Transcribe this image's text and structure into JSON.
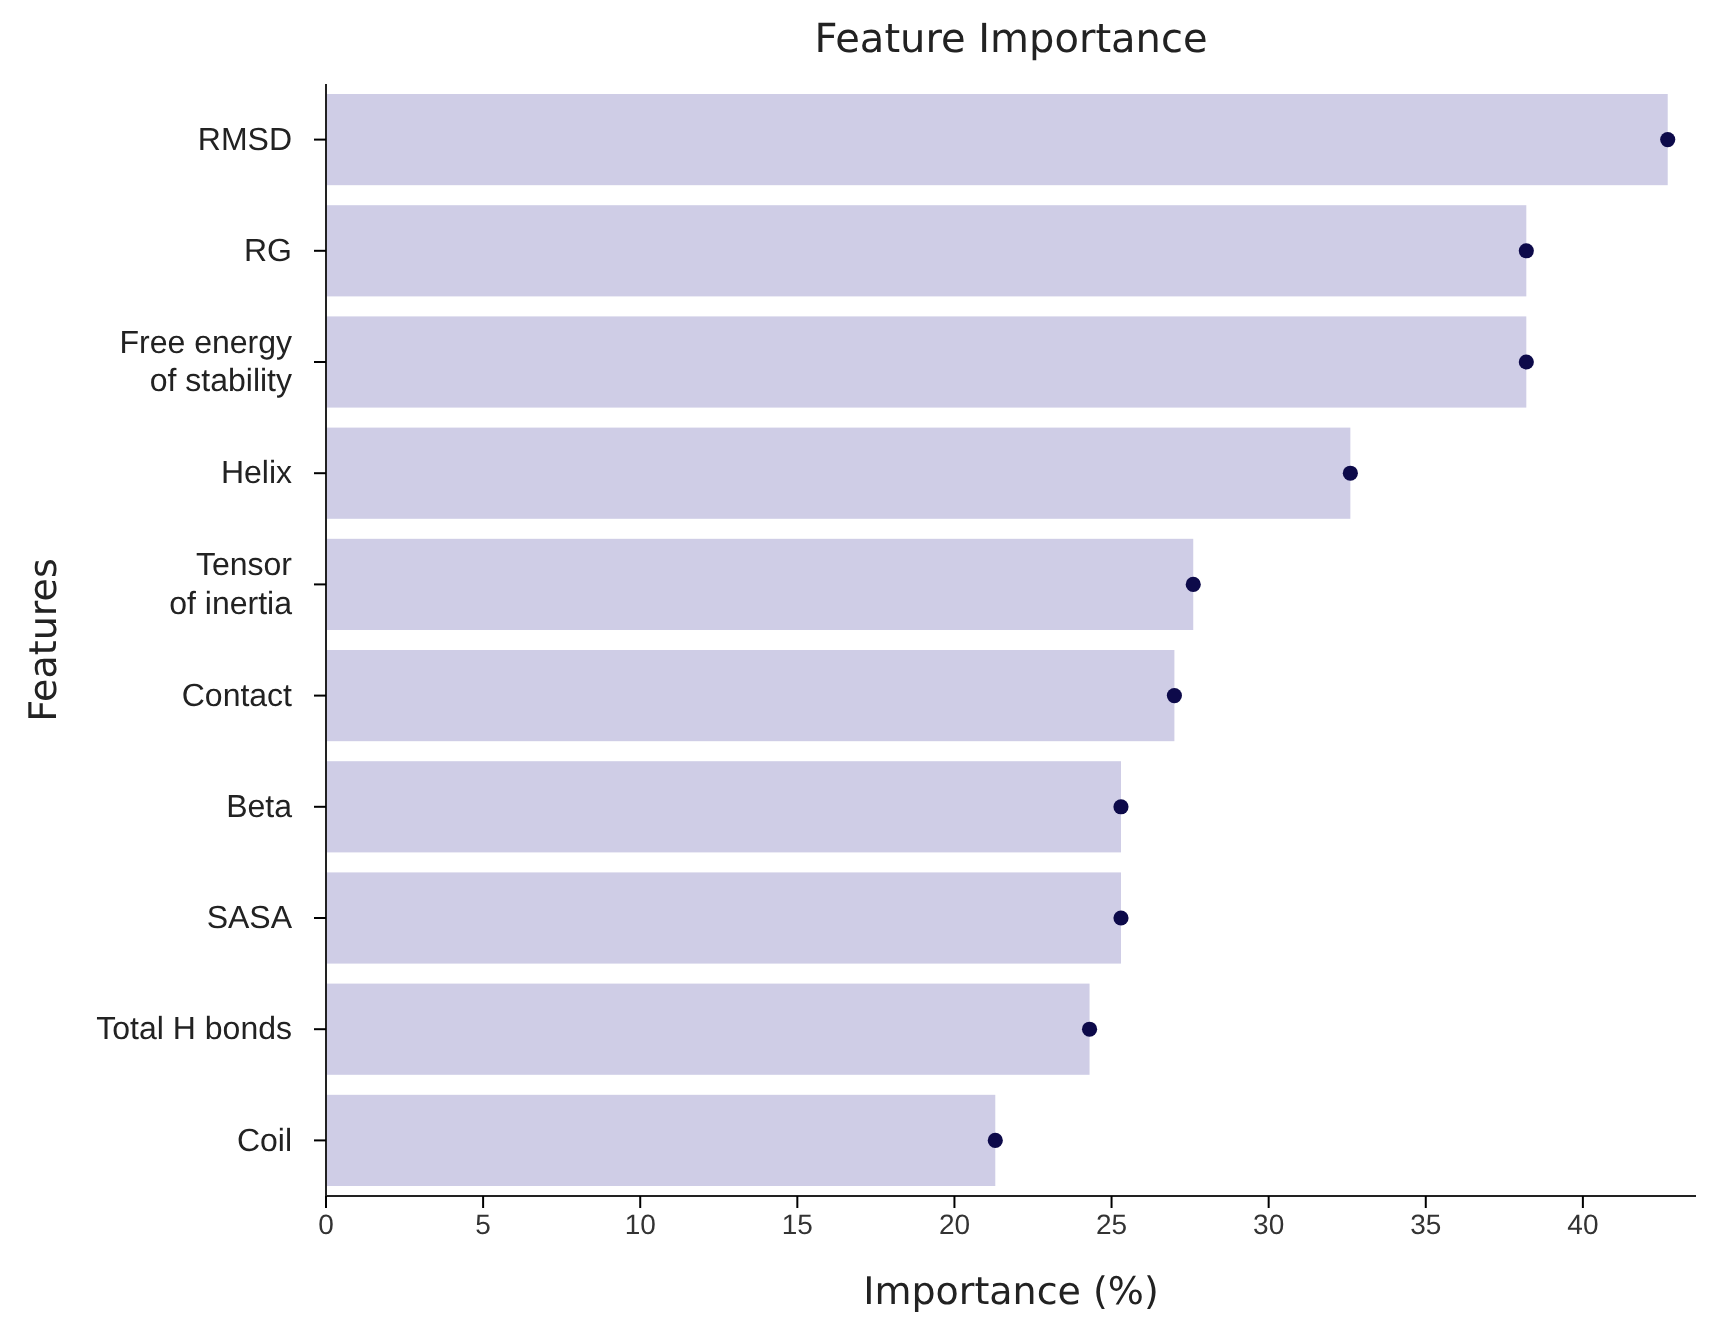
{
  "chart_data": {
    "type": "bar",
    "orientation": "horizontal",
    "title": "Feature Importance",
    "xlabel": "Importance (%)",
    "ylabel": "Features",
    "categories": [
      "RMSD",
      "RG",
      "Free energy\nof stability",
      "Helix",
      "Tensor\nof inertia",
      "Contact",
      "Beta",
      "SASA",
      "Total H bonds",
      "Coil"
    ],
    "series": [
      {
        "type": "bar",
        "color": "#cfcde6",
        "values": [
          42.7,
          38.2,
          38.2,
          32.6,
          27.6,
          27.0,
          25.3,
          25.3,
          24.3,
          21.3
        ]
      },
      {
        "type": "scatter",
        "color": "#0d0a4a",
        "marker": "circle",
        "values": [
          42.7,
          38.2,
          38.2,
          32.6,
          27.6,
          27.0,
          25.3,
          25.3,
          24.3,
          21.3
        ]
      }
    ],
    "xlim": [
      0,
      43.6
    ],
    "xticks": [
      0,
      5,
      10,
      15,
      20,
      25,
      30,
      35,
      40
    ],
    "grid": false
  }
}
